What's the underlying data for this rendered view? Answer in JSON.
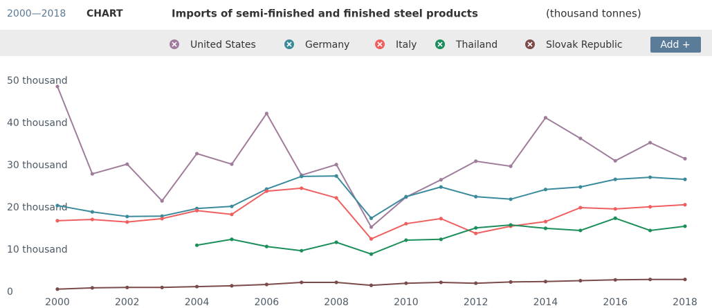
{
  "chart_data": {
    "type": "line",
    "period": "2000—2018",
    "period_suffix": "CHART",
    "title": "Imports of semi-finished and finished steel products",
    "unit": "(thousand tonnes)",
    "button": "Add +",
    "x": [
      2000,
      2001,
      2002,
      2003,
      2004,
      2005,
      2006,
      2007,
      2008,
      2009,
      2010,
      2011,
      2012,
      2013,
      2014,
      2015,
      2016,
      2017,
      2018
    ],
    "xlim": [
      2000,
      2018
    ],
    "xticks": [
      2000,
      2002,
      2004,
      2006,
      2008,
      2010,
      2012,
      2014,
      2016,
      2018
    ],
    "ylim": [
      0,
      50000
    ],
    "yticks": [
      0,
      {
        "value": 10000,
        "label": "10 thousand"
      },
      {
        "value": 20000,
        "label": "20 thousand"
      },
      {
        "value": 30000,
        "label": "30 thousand"
      },
      {
        "value": 40000,
        "label": "40 thousand"
      },
      {
        "value": 50000,
        "label": "50 thousand"
      }
    ],
    "grid": false,
    "series": [
      {
        "name": "United States",
        "color": "#a07c9b",
        "values": [
          48700,
          28000,
          30300,
          21600,
          32800,
          30300,
          42300,
          27700,
          30200,
          15400,
          22500,
          26600,
          31000,
          29800,
          41300,
          36400,
          31100,
          35400,
          31600
        ]
      },
      {
        "name": "Germany",
        "color": "#3a8a9c",
        "values": [
          20500,
          19000,
          17900,
          18000,
          19800,
          20300,
          24400,
          27400,
          27500,
          17500,
          22600,
          24900,
          22600,
          22000,
          24300,
          24900,
          26700,
          27200,
          26700
        ]
      },
      {
        "name": "Italy",
        "color": "#ef5f5f",
        "values": [
          16900,
          17200,
          16600,
          17400,
          19300,
          18400,
          23900,
          24600,
          22300,
          12600,
          16200,
          17400,
          13900,
          15600,
          16700,
          20000,
          19700,
          20200,
          20700
        ]
      },
      {
        "name": "Thailand",
        "color": "#1b8e5a",
        "values": [
          null,
          null,
          null,
          null,
          11100,
          12500,
          10800,
          9800,
          11800,
          9000,
          12300,
          12500,
          15200,
          15900,
          15100,
          14600,
          17500,
          14600,
          15600
        ]
      },
      {
        "name": "Slovak Republic",
        "color": "#7b4a4a",
        "values": [
          700,
          1000,
          1100,
          1100,
          1300,
          1500,
          1800,
          2300,
          2300,
          1600,
          2100,
          2300,
          2100,
          2400,
          2500,
          2700,
          2900,
          3000,
          3000
        ]
      }
    ]
  }
}
